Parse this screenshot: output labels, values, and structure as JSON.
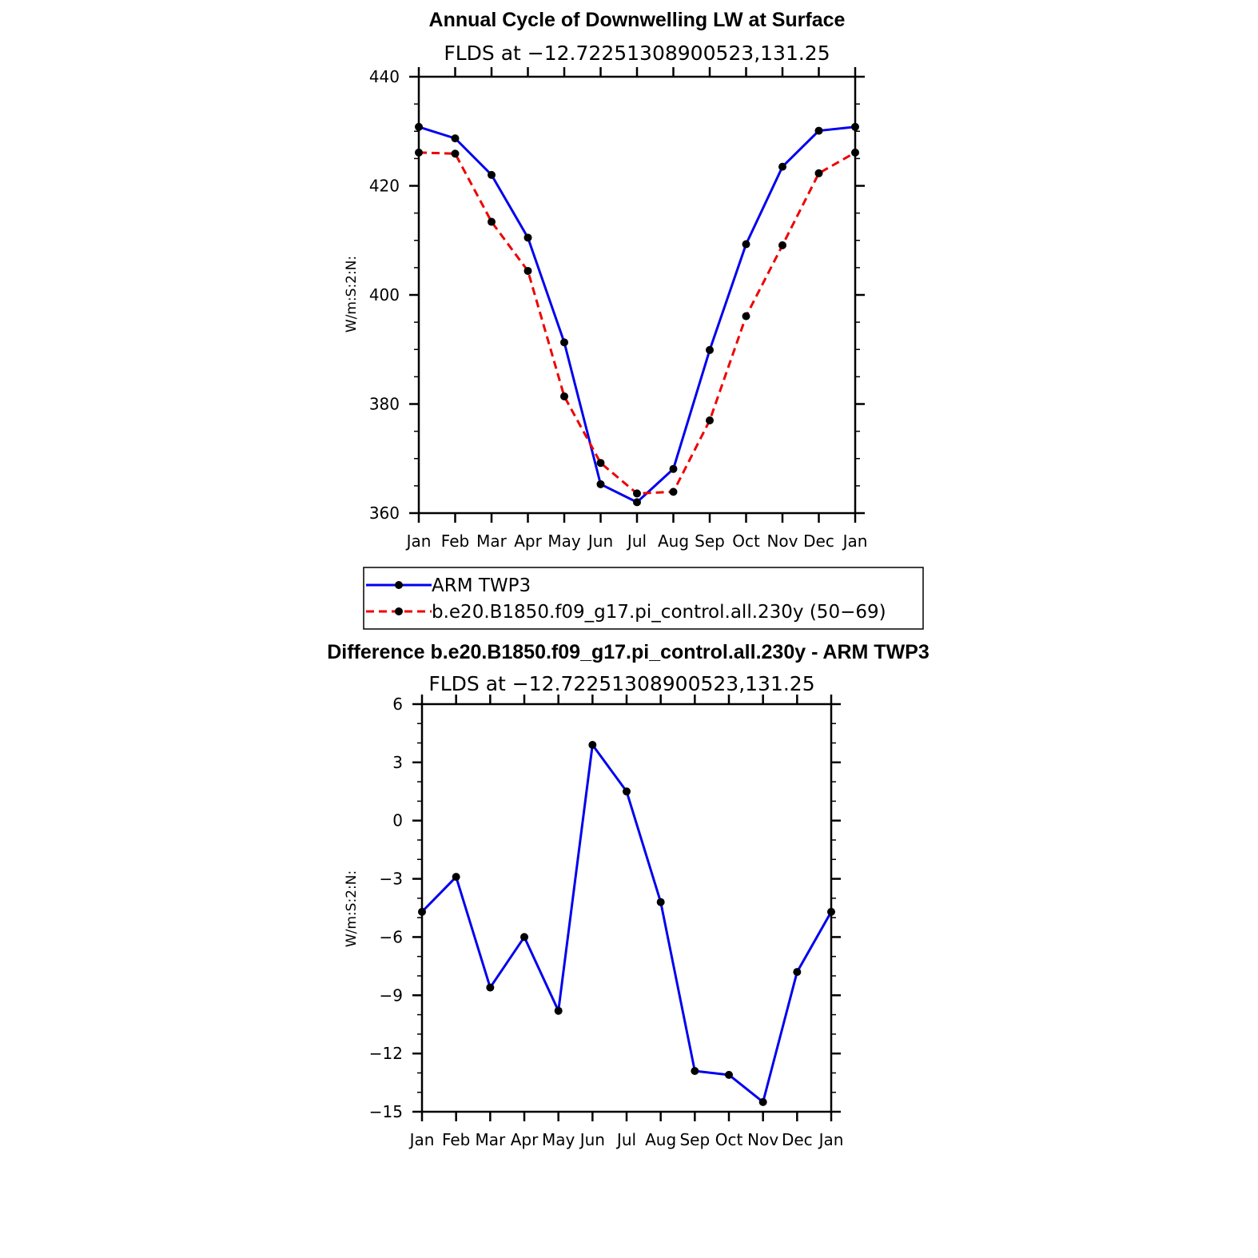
{
  "chart_data": [
    {
      "type": "line",
      "title": "Annual Cycle of Downwelling LW at Surface",
      "subtitle": "FLDS at −12.72251308900523,131.25",
      "ylabel": "W/m:S:2:N:",
      "xlabel": "",
      "categories": [
        "Jan",
        "Feb",
        "Mar",
        "Apr",
        "May",
        "Jun",
        "Jul",
        "Aug",
        "Sep",
        "Oct",
        "Nov",
        "Dec",
        "Jan"
      ],
      "ylim": [
        360,
        440
      ],
      "yticks": [
        360,
        380,
        400,
        420,
        440
      ],
      "ytick_labels": [
        "360",
        "380",
        "400",
        "420",
        "440"
      ],
      "grid": false,
      "legend_position": "below",
      "series": [
        {
          "name": "ARM TWP3",
          "color": "#0000ee",
          "style": "solid",
          "values": [
            430.8,
            428.7,
            422.0,
            410.5,
            391.3,
            365.3,
            362.0,
            368.1,
            389.9,
            409.3,
            423.5,
            430.1,
            430.8
          ]
        },
        {
          "name": "b.e20.B1850.f09_g17.pi_control.all.230y (50−69)",
          "color": "#ee0000",
          "style": "dashed",
          "values": [
            426.1,
            425.9,
            413.4,
            404.4,
            381.4,
            369.2,
            363.6,
            363.9,
            377.0,
            396.1,
            409.1,
            422.3,
            426.1
          ]
        }
      ]
    },
    {
      "type": "line",
      "title": "Difference b.e20.B1850.f09_g17.pi_control.all.230y - ARM TWP3",
      "subtitle": "FLDS at −12.72251308900523,131.25",
      "ylabel": "W/m:S:2:N:",
      "xlabel": "",
      "categories": [
        "Jan",
        "Feb",
        "Mar",
        "Apr",
        "May",
        "Jun",
        "Jul",
        "Aug",
        "Sep",
        "Oct",
        "Nov",
        "Dec",
        "Jan"
      ],
      "ylim": [
        -15,
        6
      ],
      "yticks": [
        -15,
        -12,
        -9,
        -6,
        -3,
        0,
        3,
        6
      ],
      "ytick_labels": [
        "−15",
        "−12",
        "−9",
        "−6",
        "−3",
        "0",
        "3",
        "6"
      ],
      "grid": false,
      "series": [
        {
          "color": "#0000ee",
          "style": "solid",
          "values": [
            -4.7,
            -2.9,
            -8.6,
            -6.0,
            -9.8,
            3.9,
            1.5,
            -4.2,
            -12.9,
            -13.1,
            -14.5,
            -7.8,
            -4.7
          ]
        }
      ]
    }
  ]
}
